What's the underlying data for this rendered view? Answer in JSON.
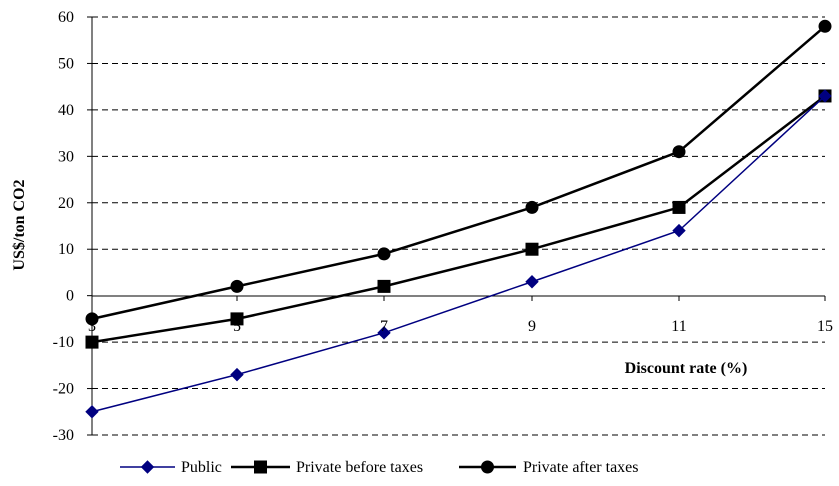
{
  "chart_data": {
    "type": "line",
    "xlabel": "Discount rate (%)",
    "ylabel": "US$/ton CO2",
    "categories": [
      "3",
      "5",
      "7",
      "9",
      "11",
      "15"
    ],
    "ylim": [
      -30,
      60
    ],
    "yticks": [
      -30,
      -20,
      -10,
      0,
      10,
      20,
      30,
      40,
      50,
      60
    ],
    "grid": "horizontal dashed",
    "legend_position": "bottom",
    "series": [
      {
        "name": "Public",
        "values": [
          -25,
          -17,
          -8,
          3,
          14,
          43
        ],
        "color": "#000080",
        "marker": "diamond"
      },
      {
        "name": "Private before taxes",
        "values": [
          -10,
          -5,
          2,
          10,
          19,
          43
        ],
        "color": "#000000",
        "marker": "square"
      },
      {
        "name": "Private after taxes",
        "values": [
          -5,
          2,
          9,
          19,
          31,
          58
        ],
        "color": "#000000",
        "marker": "circle"
      }
    ]
  }
}
